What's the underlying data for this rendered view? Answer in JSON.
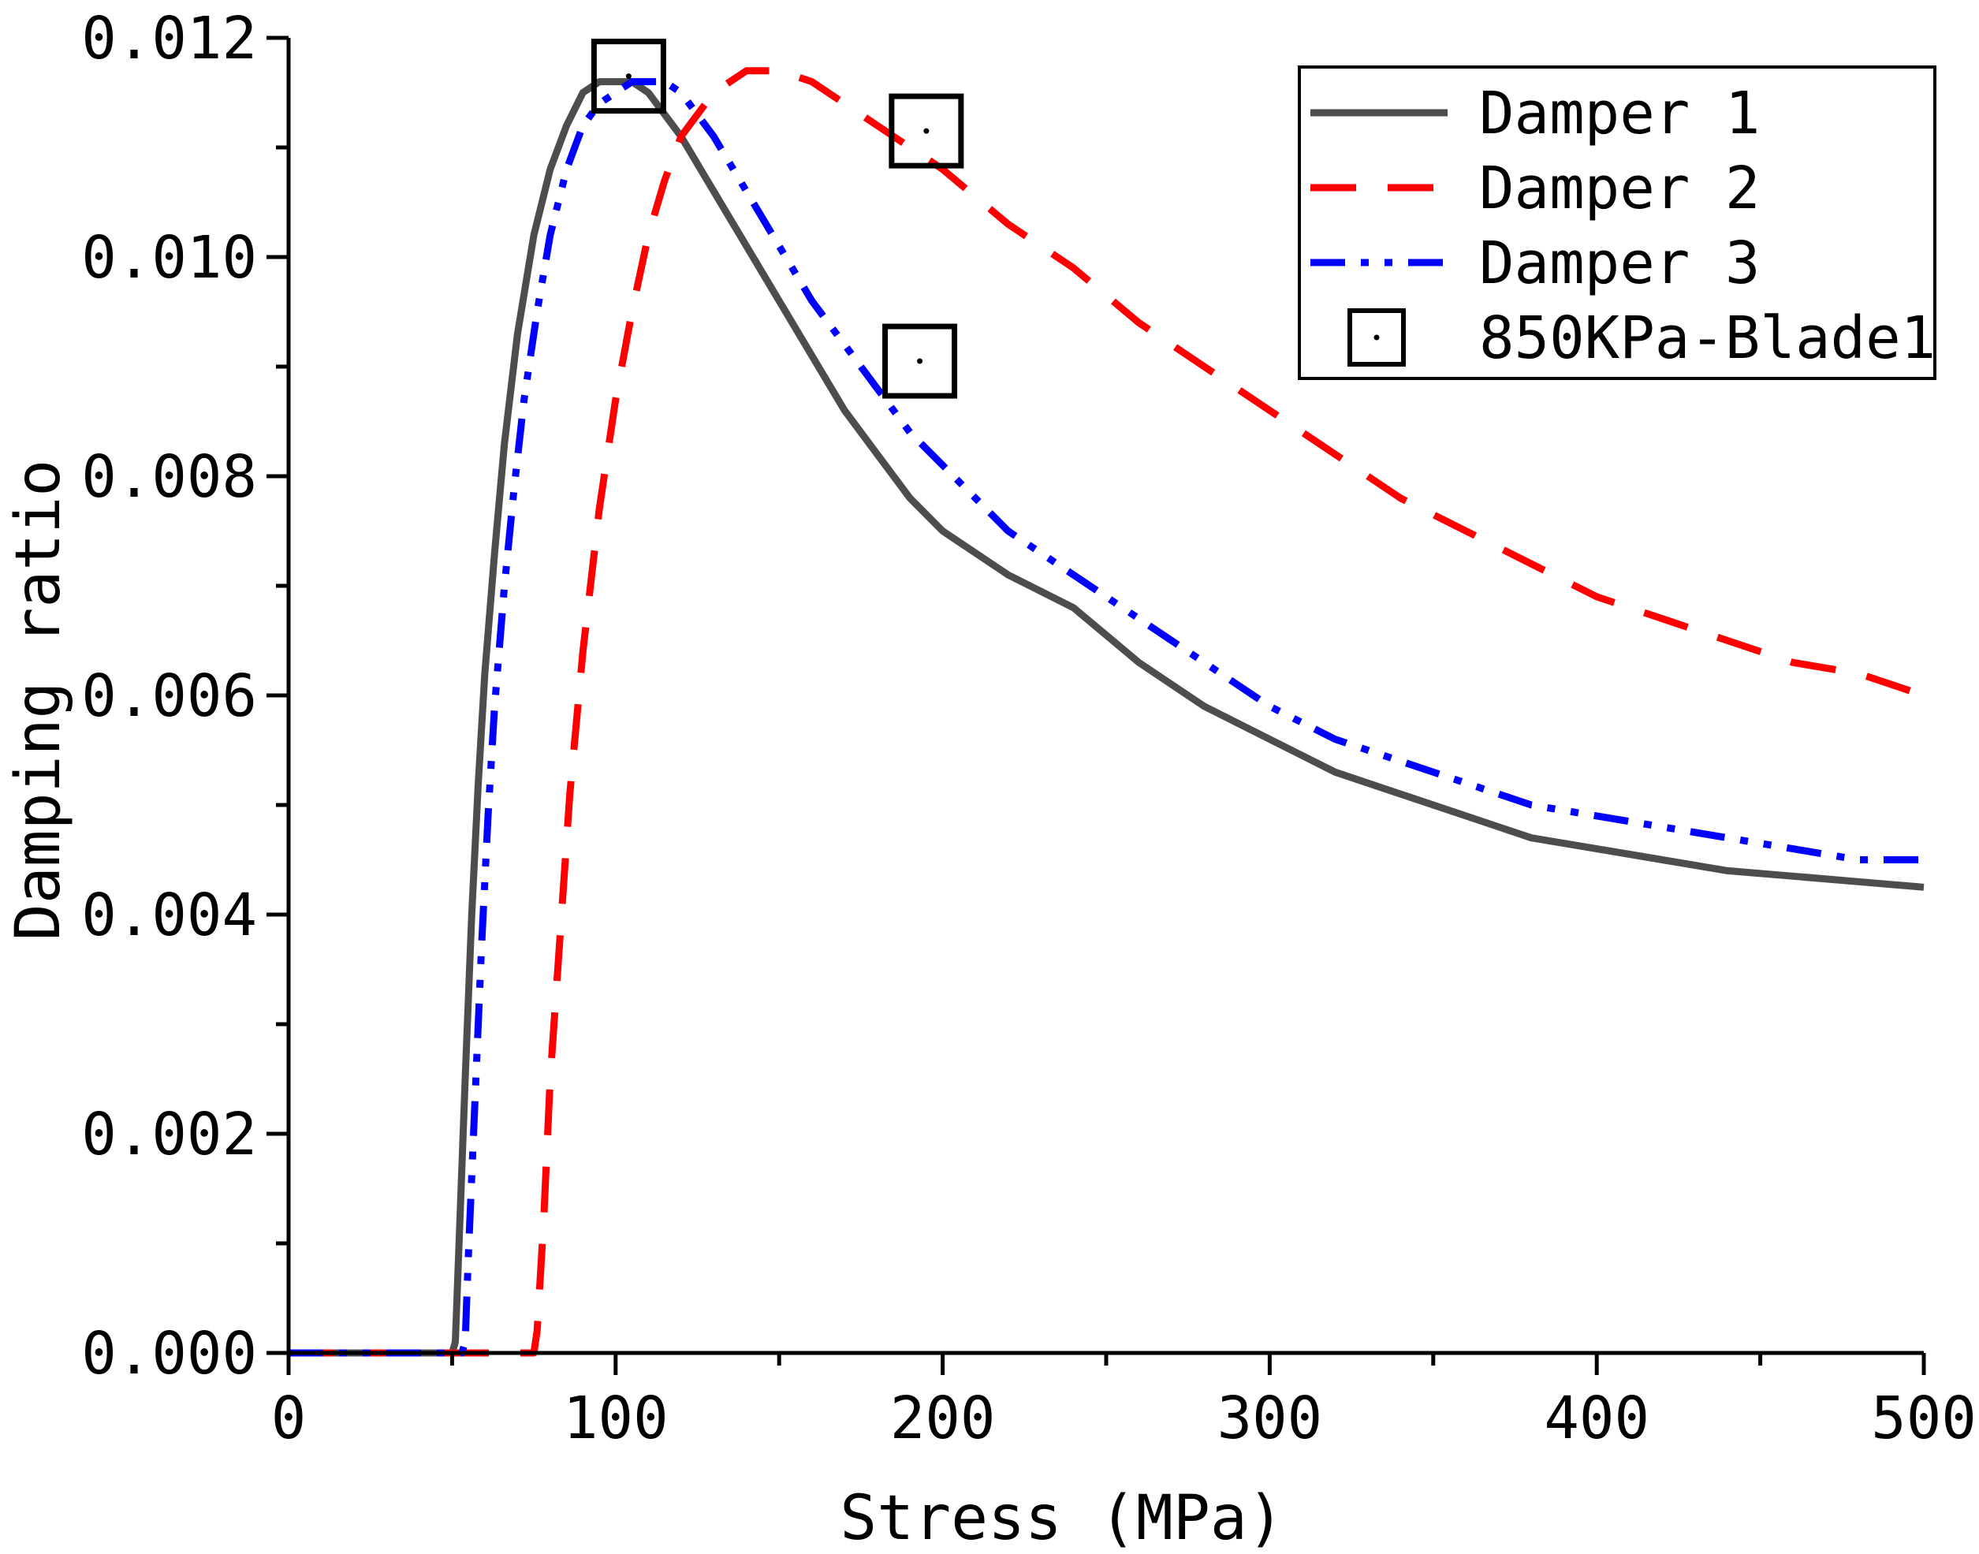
{
  "chart_data": {
    "type": "line",
    "title": "",
    "xlabel": "Stress (MPa)",
    "ylabel": "Damping ratio",
    "xlim": [
      0,
      500
    ],
    "ylim": [
      0,
      0.012
    ],
    "x_ticks": [
      0,
      100,
      200,
      300,
      400,
      500
    ],
    "x_tick_labels": [
      "0",
      "100",
      "200",
      "300",
      "400",
      "500"
    ],
    "x_minor_ticks": [
      50,
      150,
      250,
      350,
      450
    ],
    "y_ticks": [
      0,
      0.002,
      0.004,
      0.006,
      0.008,
      0.01,
      0.012
    ],
    "y_tick_labels": [
      "0.000",
      "0.002",
      "0.004",
      "0.006",
      "0.008",
      "0.010",
      "0.012"
    ],
    "y_minor_ticks": [
      0.001,
      0.003,
      0.005,
      0.007,
      0.009,
      0.011
    ],
    "grid": false,
    "legend_position": "top-right",
    "series": [
      {
        "name": "Damper 1",
        "color": "#4d4d4d",
        "style": "solid",
        "x": [
          0,
          50,
          51,
          52,
          54,
          56,
          58,
          60,
          63,
          66,
          70,
          75,
          80,
          85,
          90,
          95,
          100,
          105,
          110,
          120,
          130,
          140,
          150,
          160,
          170,
          180,
          190,
          200,
          220,
          240,
          260,
          280,
          300,
          320,
          340,
          360,
          380,
          400,
          420,
          440,
          460,
          480,
          500
        ],
        "y": [
          0,
          0,
          0.0001,
          0.0009,
          0.0025,
          0.004,
          0.0052,
          0.0062,
          0.0073,
          0.0083,
          0.0093,
          0.0102,
          0.0108,
          0.0112,
          0.0115,
          0.0116,
          0.0116,
          0.0116,
          0.0115,
          0.0111,
          0.0106,
          0.0101,
          0.0096,
          0.0091,
          0.0086,
          0.0082,
          0.0078,
          0.0075,
          0.0071,
          0.0068,
          0.0063,
          0.0059,
          0.0056,
          0.0053,
          0.0051,
          0.0049,
          0.0047,
          0.0046,
          0.0045,
          0.0044,
          0.00435,
          0.0043,
          0.00425
        ]
      },
      {
        "name": "Damper 2",
        "color": "#ff0000",
        "style": "dashed",
        "x": [
          0,
          75,
          76,
          78,
          80,
          83,
          86,
          90,
          95,
          100,
          105,
          110,
          115,
          120,
          125,
          130,
          140,
          150,
          160,
          170,
          180,
          190,
          200,
          220,
          240,
          260,
          280,
          300,
          320,
          340,
          360,
          380,
          400,
          420,
          440,
          460,
          480,
          500
        ],
        "y": [
          0,
          0,
          0.0002,
          0.0012,
          0.0025,
          0.0038,
          0.0051,
          0.0064,
          0.0077,
          0.0087,
          0.0095,
          0.0102,
          0.0107,
          0.0111,
          0.0113,
          0.0115,
          0.0117,
          0.0117,
          0.0116,
          0.0114,
          0.0112,
          0.011,
          0.0108,
          0.0103,
          0.0099,
          0.0094,
          0.009,
          0.0086,
          0.0082,
          0.0078,
          0.0075,
          0.0072,
          0.0069,
          0.0067,
          0.0065,
          0.0063,
          0.0062,
          0.006
        ]
      },
      {
        "name": "Damper 3",
        "color": "#0000ff",
        "style": "dashdotdot",
        "x": [
          0,
          53,
          54,
          55,
          57,
          59,
          61,
          63,
          66,
          69,
          72,
          76,
          80,
          85,
          90,
          95,
          100,
          105,
          110,
          115,
          120,
          130,
          140,
          150,
          160,
          170,
          180,
          190,
          200,
          220,
          240,
          260,
          280,
          300,
          320,
          340,
          360,
          380,
          400,
          420,
          440,
          460,
          480,
          500
        ],
        "y": [
          0,
          0,
          0.0001,
          0.0009,
          0.0023,
          0.0037,
          0.0049,
          0.0059,
          0.007,
          0.0079,
          0.0087,
          0.0095,
          0.0102,
          0.0108,
          0.0112,
          0.0114,
          0.0115,
          0.0116,
          0.0116,
          0.0116,
          0.0115,
          0.0111,
          0.0106,
          0.0101,
          0.0096,
          0.0092,
          0.0088,
          0.0084,
          0.0081,
          0.0075,
          0.0071,
          0.0067,
          0.0063,
          0.0059,
          0.0056,
          0.0054,
          0.0052,
          0.005,
          0.0049,
          0.0048,
          0.0047,
          0.0046,
          0.0045,
          0.0045
        ]
      },
      {
        "name": "850KPa-Blade1",
        "color": "#000000",
        "style": "markers",
        "marker": "open-square-with-dot",
        "x": [
          104,
          195,
          193
        ],
        "y": [
          0.01165,
          0.01115,
          0.00905
        ]
      }
    ]
  }
}
